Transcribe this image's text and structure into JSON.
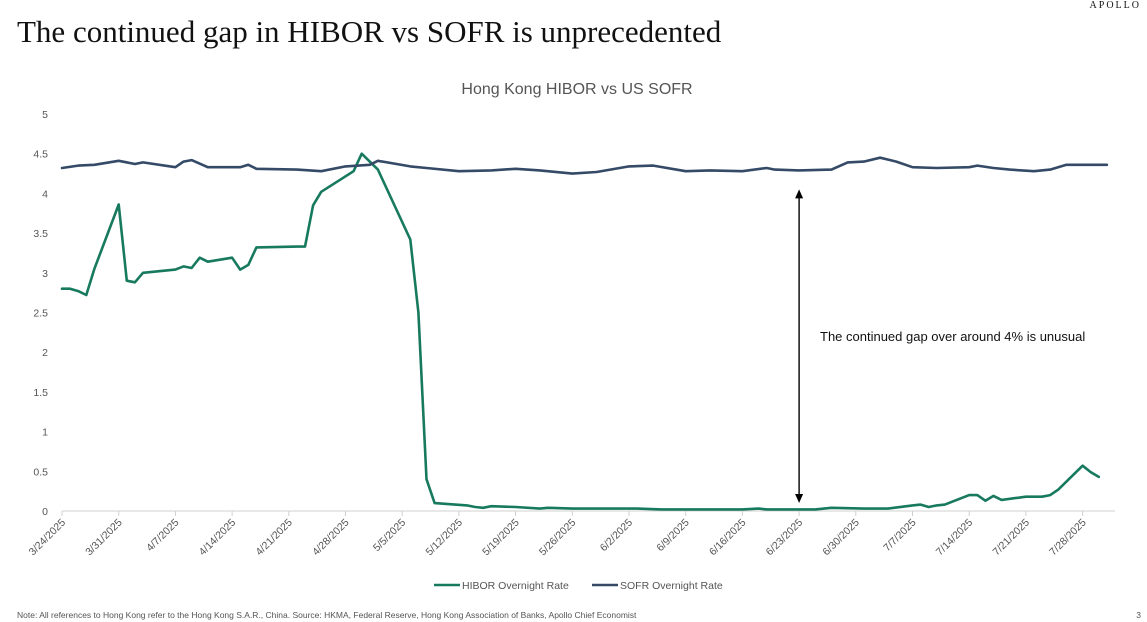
{
  "brand": "APOLLO",
  "headline": "The continued gap in HIBOR vs SOFR is unprecedented",
  "footnote": "Note: All references to Hong Kong refer to the Hong Kong S.A.R., China. Source: HKMA, Federal Reserve, Hong Kong Association of Banks, Apollo Chief Economist",
  "page_number": "3",
  "colors": {
    "hibor": "#17795e",
    "sofr": "#344a67",
    "axis": "#d0d0d0",
    "text": "#555555"
  },
  "chart_data": {
    "type": "line",
    "title": "Hong Kong HIBOR vs US SOFR",
    "xlabel": "",
    "ylabel": "",
    "ylim": [
      0,
      5
    ],
    "yticks": [
      0,
      0.5,
      1,
      1.5,
      2,
      2.5,
      3,
      3.5,
      4,
      4.5,
      5
    ],
    "ytick_labels": [
      "0",
      "0.5",
      "1",
      "1.5",
      "2",
      "2.5",
      "3",
      "3.5",
      "4",
      "4.5",
      "5"
    ],
    "xlim": [
      "2025-03-24",
      "2025-08-01"
    ],
    "xtick_labels": [
      "3/24/2025",
      "3/31/2025",
      "4/7/2025",
      "4/14/2025",
      "4/21/2025",
      "4/28/2025",
      "5/5/2025",
      "5/12/2025",
      "5/19/2025",
      "5/26/2025",
      "6/2/2025",
      "6/9/2025",
      "6/16/2025",
      "6/23/2025",
      "6/30/2025",
      "7/7/2025",
      "7/14/2025",
      "7/21/2025",
      "7/28/2025"
    ],
    "legend_position": "bottom",
    "grid": false,
    "annotation": {
      "text": "The continued gap over around 4% is unusual",
      "arrow_date": "2025-06-23",
      "arrow_from": 0.1,
      "arrow_to": 4.05
    },
    "series": [
      {
        "name": "HIBOR Overnight Rate",
        "color": "#17795e",
        "points": [
          [
            "2025-03-24",
            2.8
          ],
          [
            "2025-03-25",
            2.8
          ],
          [
            "2025-03-26",
            2.77
          ],
          [
            "2025-03-27",
            2.72
          ],
          [
            "2025-03-28",
            3.05
          ],
          [
            "2025-03-31",
            3.86
          ],
          [
            "2025-04-01",
            2.9
          ],
          [
            "2025-04-02",
            2.88
          ],
          [
            "2025-04-03",
            3.0
          ],
          [
            "2025-04-07",
            3.04
          ],
          [
            "2025-04-08",
            3.08
          ],
          [
            "2025-04-09",
            3.06
          ],
          [
            "2025-04-10",
            3.19
          ],
          [
            "2025-04-11",
            3.14
          ],
          [
            "2025-04-14",
            3.19
          ],
          [
            "2025-04-15",
            3.04
          ],
          [
            "2025-04-16",
            3.1
          ],
          [
            "2025-04-17",
            3.32
          ],
          [
            "2025-04-22",
            3.33
          ],
          [
            "2025-04-23",
            3.33
          ],
          [
            "2025-04-24",
            3.85
          ],
          [
            "2025-04-25",
            4.02
          ],
          [
            "2025-04-29",
            4.28
          ],
          [
            "2025-04-30",
            4.5
          ],
          [
            "2025-05-02",
            4.3
          ],
          [
            "2025-05-06",
            3.42
          ],
          [
            "2025-05-07",
            2.5
          ],
          [
            "2025-05-08",
            0.4
          ],
          [
            "2025-05-09",
            0.1
          ],
          [
            "2025-05-13",
            0.07
          ],
          [
            "2025-05-14",
            0.05
          ],
          [
            "2025-05-15",
            0.04
          ],
          [
            "2025-05-16",
            0.06
          ],
          [
            "2025-05-19",
            0.05
          ],
          [
            "2025-05-22",
            0.03
          ],
          [
            "2025-05-23",
            0.04
          ],
          [
            "2025-05-26",
            0.03
          ],
          [
            "2025-05-30",
            0.03
          ],
          [
            "2025-06-03",
            0.03
          ],
          [
            "2025-06-06",
            0.02
          ],
          [
            "2025-06-09",
            0.02
          ],
          [
            "2025-06-12",
            0.02
          ],
          [
            "2025-06-16",
            0.02
          ],
          [
            "2025-06-18",
            0.03
          ],
          [
            "2025-06-19",
            0.02
          ],
          [
            "2025-06-23",
            0.02
          ],
          [
            "2025-06-25",
            0.02
          ],
          [
            "2025-06-27",
            0.04
          ],
          [
            "2025-07-01",
            0.03
          ],
          [
            "2025-07-04",
            0.03
          ],
          [
            "2025-07-07",
            0.07
          ],
          [
            "2025-07-08",
            0.08
          ],
          [
            "2025-07-09",
            0.05
          ],
          [
            "2025-07-10",
            0.07
          ],
          [
            "2025-07-11",
            0.08
          ],
          [
            "2025-07-14",
            0.2
          ],
          [
            "2025-07-15",
            0.2
          ],
          [
            "2025-07-16",
            0.13
          ],
          [
            "2025-07-17",
            0.19
          ],
          [
            "2025-07-18",
            0.14
          ],
          [
            "2025-07-21",
            0.18
          ],
          [
            "2025-07-23",
            0.18
          ],
          [
            "2025-07-24",
            0.2
          ],
          [
            "2025-07-25",
            0.27
          ],
          [
            "2025-07-28",
            0.57
          ],
          [
            "2025-07-29",
            0.49
          ],
          [
            "2025-07-30",
            0.43
          ]
        ]
      },
      {
        "name": "SOFR Overnight Rate",
        "color": "#344a67",
        "points": [
          [
            "2025-03-24",
            4.32
          ],
          [
            "2025-03-26",
            4.35
          ],
          [
            "2025-03-28",
            4.36
          ],
          [
            "2025-03-31",
            4.41
          ],
          [
            "2025-04-02",
            4.37
          ],
          [
            "2025-04-03",
            4.39
          ],
          [
            "2025-04-07",
            4.33
          ],
          [
            "2025-04-08",
            4.4
          ],
          [
            "2025-04-09",
            4.42
          ],
          [
            "2025-04-11",
            4.33
          ],
          [
            "2025-04-15",
            4.33
          ],
          [
            "2025-04-16",
            4.36
          ],
          [
            "2025-04-17",
            4.31
          ],
          [
            "2025-04-22",
            4.3
          ],
          [
            "2025-04-25",
            4.28
          ],
          [
            "2025-04-28",
            4.34
          ],
          [
            "2025-05-01",
            4.36
          ],
          [
            "2025-05-02",
            4.41
          ],
          [
            "2025-05-06",
            4.34
          ],
          [
            "2025-05-08",
            4.32
          ],
          [
            "2025-05-12",
            4.28
          ],
          [
            "2025-05-16",
            4.29
          ],
          [
            "2025-05-19",
            4.31
          ],
          [
            "2025-05-22",
            4.29
          ],
          [
            "2025-05-26",
            4.25
          ],
          [
            "2025-05-29",
            4.27
          ],
          [
            "2025-06-02",
            4.34
          ],
          [
            "2025-06-05",
            4.35
          ],
          [
            "2025-06-09",
            4.28
          ],
          [
            "2025-06-12",
            4.29
          ],
          [
            "2025-06-16",
            4.28
          ],
          [
            "2025-06-19",
            4.32
          ],
          [
            "2025-06-20",
            4.3
          ],
          [
            "2025-06-23",
            4.29
          ],
          [
            "2025-06-27",
            4.3
          ],
          [
            "2025-06-29",
            4.39
          ],
          [
            "2025-07-01",
            4.4
          ],
          [
            "2025-07-03",
            4.45
          ],
          [
            "2025-07-05",
            4.4
          ],
          [
            "2025-07-07",
            4.33
          ],
          [
            "2025-07-10",
            4.32
          ],
          [
            "2025-07-14",
            4.33
          ],
          [
            "2025-07-15",
            4.35
          ],
          [
            "2025-07-17",
            4.32
          ],
          [
            "2025-07-19",
            4.3
          ],
          [
            "2025-07-22",
            4.28
          ],
          [
            "2025-07-24",
            4.3
          ],
          [
            "2025-07-26",
            4.36
          ],
          [
            "2025-07-31",
            4.36
          ]
        ]
      }
    ]
  }
}
